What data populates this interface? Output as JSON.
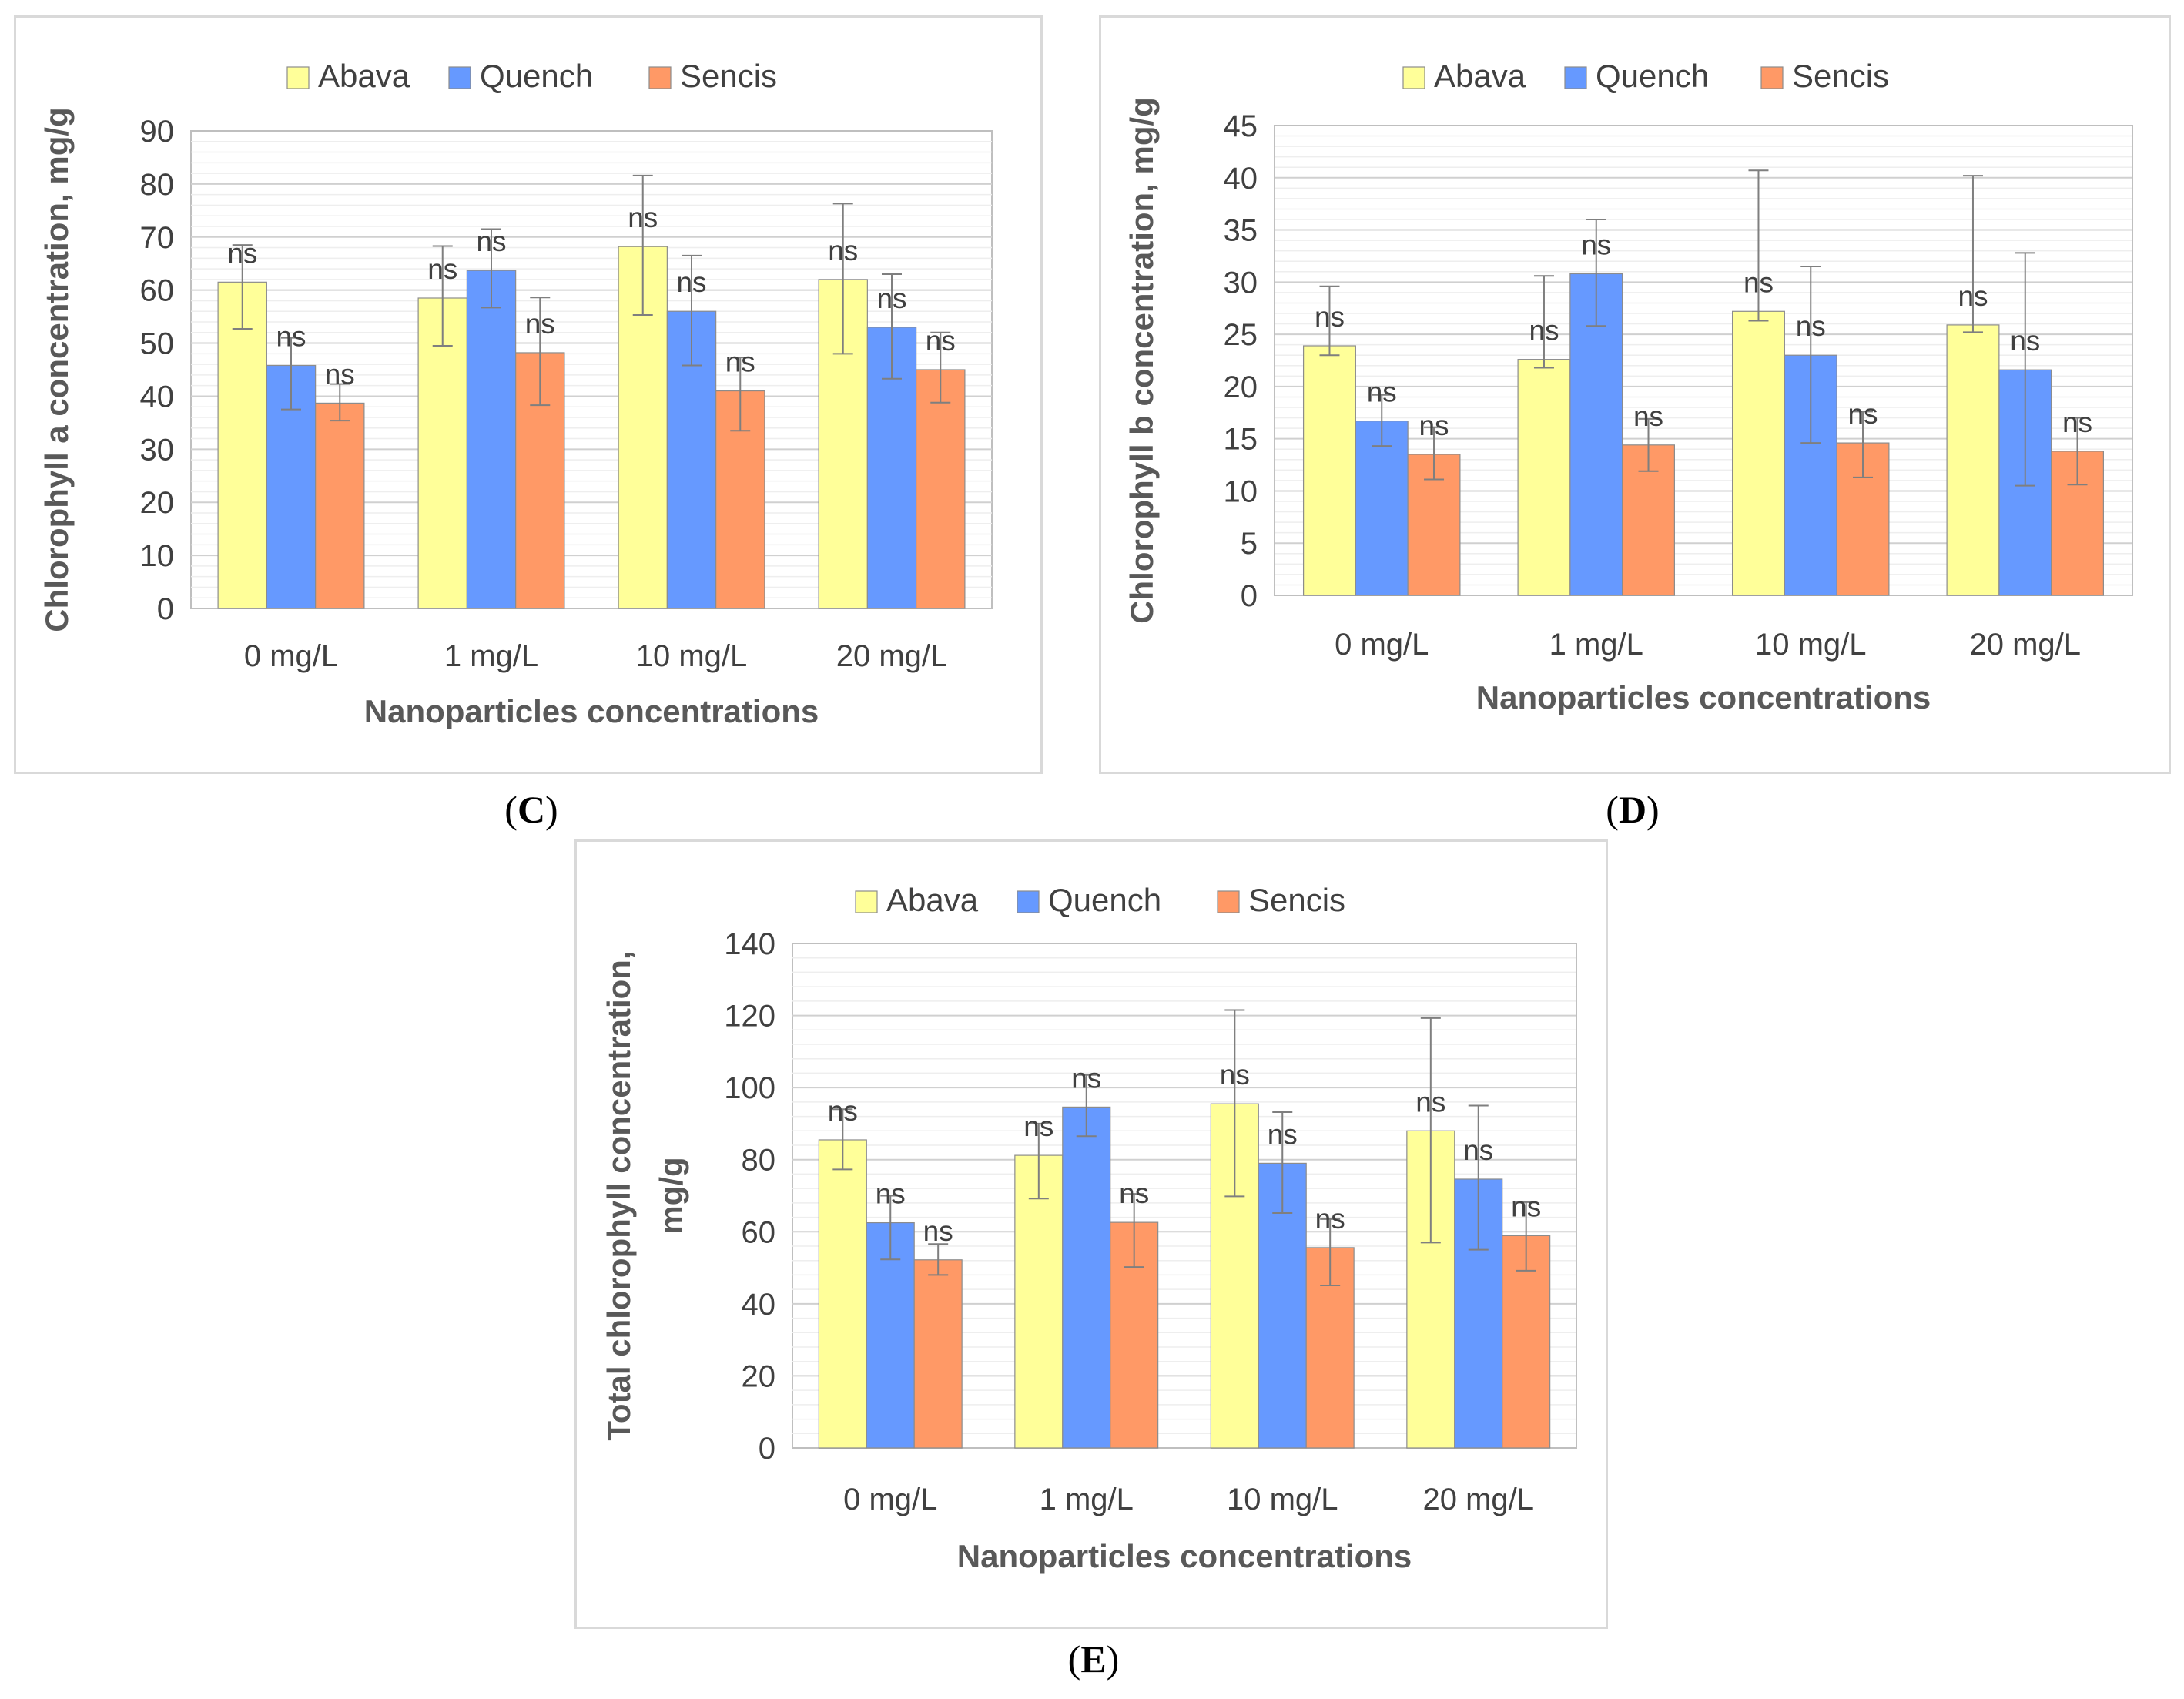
{
  "figure": {
    "series_names": [
      "Abava",
      "Quench",
      "Sencis"
    ],
    "colors": {
      "Abava": "#ffff99",
      "Quench": "#6699ff",
      "Sencis": "#ff9966"
    },
    "significance_label": "ns"
  },
  "chart_data": [
    {
      "id": "C",
      "type": "bar",
      "caption": {
        "open": "(",
        "letter": "C",
        "close": ")"
      },
      "title": "",
      "xlabel": "Nanoparticles concentrations",
      "ylabel": "Chlorophyll a concentration, mg/g",
      "categories": [
        "0 mg/L",
        "1 mg/L",
        "10 mg/L",
        "20 mg/L"
      ],
      "ylim": [
        0,
        90
      ],
      "yticks": [
        0,
        10,
        20,
        30,
        40,
        50,
        60,
        70,
        80,
        90
      ],
      "legend": [
        "Abava",
        "Quench",
        "Sencis"
      ],
      "series": [
        {
          "name": "Abava",
          "values": [
            61.5,
            58.5,
            68.2,
            62.0
          ],
          "err_low": [
            52.7,
            49.5,
            55.3,
            48.0
          ],
          "err_high": [
            68.5,
            68.3,
            81.6,
            76.3
          ],
          "labels": [
            "ns",
            "ns",
            "ns",
            "ns"
          ]
        },
        {
          "name": "Quench",
          "values": [
            45.8,
            63.7,
            56.0,
            53.0
          ],
          "err_low": [
            37.5,
            56.7,
            45.8,
            43.3
          ],
          "err_high": [
            51.0,
            71.5,
            66.5,
            63.0
          ],
          "labels": [
            "ns",
            "ns",
            "ns",
            "ns"
          ]
        },
        {
          "name": "Sencis",
          "values": [
            38.7,
            48.2,
            41.0,
            45.0
          ],
          "err_low": [
            35.4,
            38.3,
            33.5,
            38.8
          ],
          "err_high": [
            42.3,
            58.6,
            47.3,
            52.0
          ],
          "labels": [
            "ns",
            "ns",
            "ns",
            "ns"
          ]
        }
      ]
    },
    {
      "id": "D",
      "type": "bar",
      "caption": {
        "open": "(",
        "letter": "D",
        "close": ")"
      },
      "title": "",
      "xlabel": "Nanoparticles concentrations",
      "ylabel": "Chlorophyll b concentration, mg/g",
      "categories": [
        "0 mg/L",
        "1 mg/L",
        "10 mg/L",
        "20 mg/L"
      ],
      "ylim": [
        0,
        45
      ],
      "yticks": [
        0,
        5,
        10,
        15,
        20,
        25,
        30,
        35,
        40,
        45
      ],
      "legend": [
        "Abava",
        "Quench",
        "Sencis"
      ],
      "series": [
        {
          "name": "Abava",
          "values": [
            23.9,
            22.6,
            27.2,
            25.9
          ],
          "err_low": [
            23.0,
            21.8,
            26.3,
            25.2
          ],
          "err_high": [
            29.6,
            30.6,
            40.7,
            40.2
          ],
          "labels": [
            "ns",
            "ns",
            "ns",
            "ns"
          ]
        },
        {
          "name": "Quench",
          "values": [
            16.7,
            30.8,
            23.0,
            21.6
          ],
          "err_low": [
            14.3,
            25.8,
            14.6,
            10.5
          ],
          "err_high": [
            19.2,
            36.0,
            31.5,
            32.8
          ],
          "labels": [
            "ns",
            "ns",
            "ns",
            "ns"
          ]
        },
        {
          "name": "Sencis",
          "values": [
            13.5,
            14.4,
            14.6,
            13.8
          ],
          "err_low": [
            11.1,
            11.9,
            11.3,
            10.6
          ],
          "err_high": [
            16.1,
            16.9,
            17.6,
            17.0
          ],
          "labels": [
            "ns",
            "ns",
            "ns",
            "ns"
          ]
        }
      ]
    },
    {
      "id": "E",
      "type": "bar",
      "caption": {
        "open": "(",
        "letter": "E",
        "close": ")"
      },
      "title": "",
      "xlabel": "Nanoparticles concentrations",
      "ylabel": "Total chlorophyll concentration,",
      "ylabel2": "mg/g",
      "categories": [
        "0 mg/L",
        "1 mg/L",
        "10 mg/L",
        "20 mg/L"
      ],
      "ylim": [
        0,
        140
      ],
      "yticks": [
        0,
        20,
        40,
        60,
        80,
        100,
        120,
        140
      ],
      "legend": [
        "Abava",
        "Quench",
        "Sencis"
      ],
      "series": [
        {
          "name": "Abava",
          "values": [
            85.5,
            81.2,
            95.5,
            88.0
          ],
          "err_low": [
            77.3,
            69.2,
            69.8,
            57.0
          ],
          "err_high": [
            94.0,
            90.0,
            121.5,
            119.3
          ],
          "labels": [
            "ns",
            "ns",
            "ns",
            "ns"
          ]
        },
        {
          "name": "Quench",
          "values": [
            62.5,
            94.6,
            79.0,
            74.6
          ],
          "err_low": [
            52.3,
            86.5,
            65.2,
            55.0
          ],
          "err_high": [
            70.0,
            103.5,
            93.2,
            95.0
          ],
          "labels": [
            "ns",
            "ns",
            "ns",
            "ns"
          ]
        },
        {
          "name": "Sencis",
          "values": [
            52.2,
            62.6,
            55.6,
            58.9
          ],
          "err_low": [
            48.0,
            50.2,
            45.1,
            49.2
          ],
          "err_high": [
            56.6,
            70.5,
            63.5,
            68.2
          ],
          "labels": [
            "ns",
            "ns",
            "ns",
            "ns"
          ]
        }
      ]
    }
  ]
}
